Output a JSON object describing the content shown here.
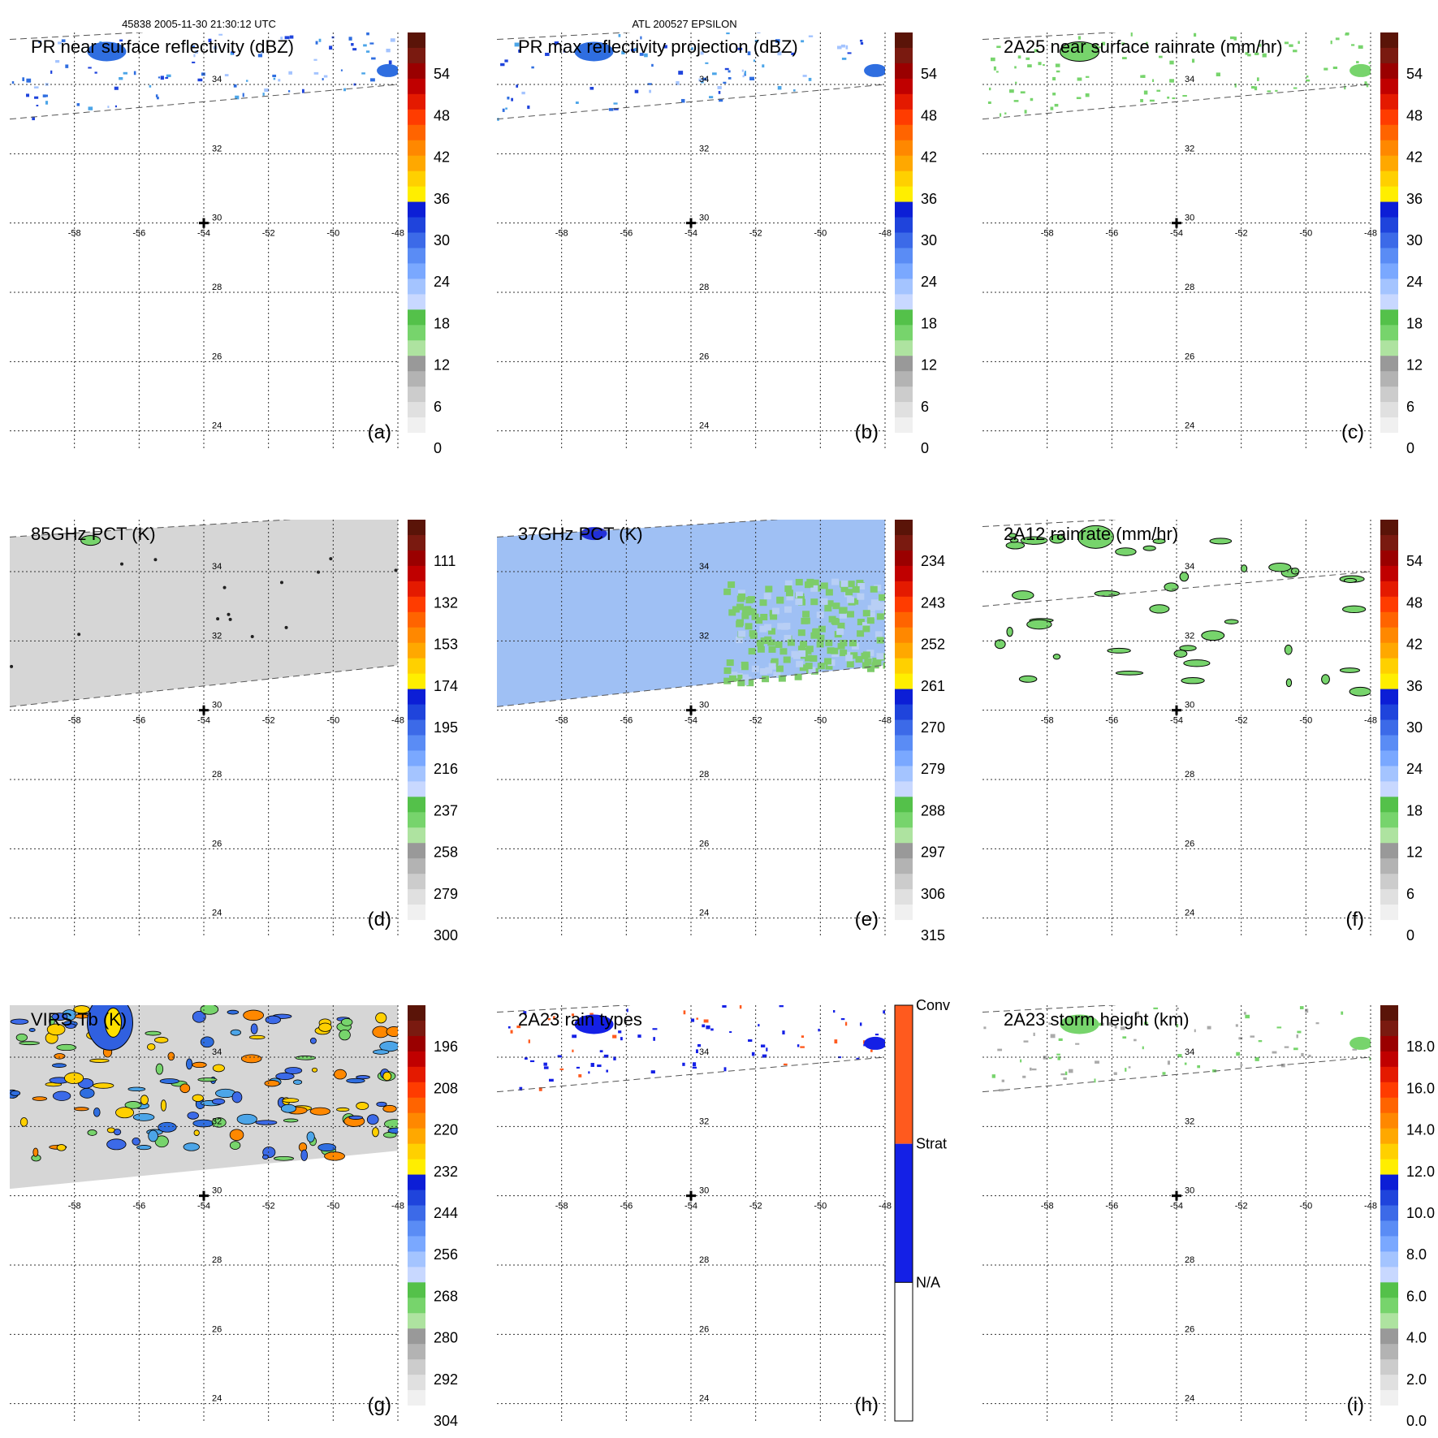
{
  "header": {
    "orbit_time": "45838 2005-11-30 21:30:12 UTC",
    "storm": "ATL 200527 EPSILON"
  },
  "chart_data": [
    {
      "type": "heatmap",
      "panel": "(a)",
      "title": "PR near surface reflectivity (dBZ)",
      "x_ticks": [
        "-58",
        "-56",
        "-54",
        "-52",
        "-50",
        "-48"
      ],
      "y_ticks": [
        "34",
        "32",
        "30",
        "28",
        "26",
        "24"
      ],
      "xlim": [
        -60,
        -48
      ],
      "ylim": [
        23.5,
        35.5
      ],
      "colorbar": {
        "ticks": [
          "54",
          "48",
          "42",
          "36",
          "30",
          "24",
          "18",
          "12",
          "6",
          "0"
        ]
      },
      "swath": {
        "top_edge": [
          [
            -60,
            35.3
          ],
          [
            -48,
            35.9
          ]
        ],
        "bottom_edge": [
          [
            -60,
            33.0
          ],
          [
            -48,
            34.0
          ]
        ]
      }
    },
    {
      "type": "heatmap",
      "panel": "(b)",
      "title": "PR max reflectivity projection (dBZ)",
      "x_ticks": [
        "-58",
        "-56",
        "-54",
        "-52",
        "-50",
        "-48"
      ],
      "y_ticks": [
        "34",
        "32",
        "30",
        "28",
        "26",
        "24"
      ],
      "xlim": [
        -60,
        -48
      ],
      "ylim": [
        23.5,
        35.5
      ],
      "colorbar": {
        "ticks": [
          "54",
          "48",
          "42",
          "36",
          "30",
          "24",
          "18",
          "12",
          "6",
          "0"
        ]
      },
      "swath": {
        "top_edge": [
          [
            -60,
            35.3
          ],
          [
            -48,
            35.9
          ]
        ],
        "bottom_edge": [
          [
            -60,
            33.0
          ],
          [
            -48,
            34.0
          ]
        ]
      }
    },
    {
      "type": "heatmap",
      "panel": "(c)",
      "title": "2A25 near surface rainrate (mm/hr)",
      "x_ticks": [
        "-58",
        "-56",
        "-54",
        "-52",
        "-50",
        "-48"
      ],
      "y_ticks": [
        "34",
        "32",
        "30",
        "28",
        "26",
        "24"
      ],
      "xlim": [
        -60,
        -48
      ],
      "ylim": [
        23.5,
        35.5
      ],
      "colorbar": {
        "ticks": [
          "54",
          "48",
          "42",
          "36",
          "30",
          "24",
          "18",
          "12",
          "6",
          "0"
        ]
      },
      "swath": {
        "top_edge": [
          [
            -60,
            35.3
          ],
          [
            -48,
            35.9
          ]
        ],
        "bottom_edge": [
          [
            -60,
            33.0
          ],
          [
            -48,
            34.0
          ]
        ]
      }
    },
    {
      "type": "heatmap",
      "panel": "(d)",
      "title": "85GHz PCT (K)",
      "x_ticks": [
        "-58",
        "-56",
        "-54",
        "-52",
        "-50",
        "-48"
      ],
      "y_ticks": [
        "34",
        "32",
        "30",
        "28",
        "26",
        "24"
      ],
      "xlim": [
        -60,
        -48
      ],
      "ylim": [
        23.5,
        35.5
      ],
      "colorbar": {
        "ticks": [
          "111",
          "132",
          "153",
          "174",
          "195",
          "216",
          "237",
          "258",
          "279",
          "300"
        ]
      },
      "swath": {
        "top_edge": [
          [
            -60,
            35.0
          ],
          [
            -48,
            35.7
          ]
        ],
        "bottom_edge": [
          [
            -60,
            30.1
          ],
          [
            -48,
            31.3
          ]
        ]
      }
    },
    {
      "type": "heatmap",
      "panel": "(e)",
      "title": "37GHz PCT (K)",
      "x_ticks": [
        "-58",
        "-56",
        "-54",
        "-52",
        "-50",
        "-48"
      ],
      "y_ticks": [
        "34",
        "32",
        "30",
        "28",
        "26",
        "24"
      ],
      "xlim": [
        -60,
        -48
      ],
      "ylim": [
        23.5,
        35.5
      ],
      "colorbar": {
        "ticks": [
          "234",
          "243",
          "252",
          "261",
          "270",
          "279",
          "288",
          "297",
          "306",
          "315"
        ]
      },
      "swath": {
        "top_edge": [
          [
            -60,
            35.0
          ],
          [
            -48,
            35.7
          ]
        ],
        "bottom_edge": [
          [
            -60,
            30.1
          ],
          [
            -48,
            31.3
          ]
        ]
      }
    },
    {
      "type": "heatmap",
      "panel": "(f)",
      "title": "2A12 rainrate (mm/hr)",
      "x_ticks": [
        "-58",
        "-56",
        "-54",
        "-52",
        "-50",
        "-48"
      ],
      "y_ticks": [
        "34",
        "32",
        "30",
        "28",
        "26",
        "24"
      ],
      "xlim": [
        -60,
        -48
      ],
      "ylim": [
        23.5,
        35.5
      ],
      "colorbar": {
        "ticks": [
          "54",
          "48",
          "42",
          "36",
          "30",
          "24",
          "18",
          "12",
          "6",
          "0"
        ]
      },
      "swath": {
        "top_edge": [
          [
            -60,
            35.3
          ],
          [
            -48,
            35.9
          ]
        ],
        "bottom_edge": [
          [
            -60,
            33.0
          ],
          [
            -48,
            34.0
          ]
        ]
      }
    },
    {
      "type": "heatmap",
      "panel": "(g)",
      "title": "VIRS Tb (K)",
      "x_ticks": [
        "-58",
        "-56",
        "-54",
        "-52",
        "-50",
        "-48"
      ],
      "y_ticks": [
        "34",
        "32",
        "30",
        "28",
        "26",
        "24"
      ],
      "xlim": [
        -60,
        -48
      ],
      "ylim": [
        23.5,
        35.5
      ],
      "colorbar": {
        "ticks": [
          "196",
          "208",
          "220",
          "232",
          "244",
          "256",
          "268",
          "280",
          "292",
          "304"
        ]
      },
      "swath": {
        "top_edge": [
          [
            -60,
            35.5
          ],
          [
            -48,
            35.5
          ]
        ],
        "bottom_edge": [
          [
            -60,
            30.2
          ],
          [
            -48,
            31.3
          ]
        ]
      }
    },
    {
      "type": "heatmap",
      "panel": "(h)",
      "title": "2A23 rain types",
      "x_ticks": [
        "-58",
        "-56",
        "-54",
        "-52",
        "-50",
        "-48"
      ],
      "y_ticks": [
        "34",
        "32",
        "30",
        "28",
        "26",
        "24"
      ],
      "xlim": [
        -60,
        -48
      ],
      "ylim": [
        23.5,
        35.5
      ],
      "colorbar": {
        "categories": [
          "Conv",
          "Strat",
          "N/A"
        ]
      },
      "swath": {
        "top_edge": [
          [
            -60,
            35.3
          ],
          [
            -48,
            35.9
          ]
        ],
        "bottom_edge": [
          [
            -60,
            33.0
          ],
          [
            -48,
            34.0
          ]
        ]
      }
    },
    {
      "type": "heatmap",
      "panel": "(i)",
      "title": "2A23 storm height (km)",
      "x_ticks": [
        "-58",
        "-56",
        "-54",
        "-52",
        "-50",
        "-48"
      ],
      "y_ticks": [
        "34",
        "32",
        "30",
        "28",
        "26",
        "24"
      ],
      "xlim": [
        -60,
        -48
      ],
      "ylim": [
        23.5,
        35.5
      ],
      "colorbar": {
        "ticks": [
          "18.0",
          "16.0",
          "14.0",
          "12.0",
          "10.0",
          "8.0",
          "6.0",
          "4.0",
          "2.0",
          "0.0"
        ]
      },
      "swath": {
        "top_edge": [
          [
            -60,
            35.3
          ],
          [
            -48,
            35.9
          ]
        ],
        "bottom_edge": [
          [
            -60,
            33.0
          ],
          [
            -48,
            34.0
          ]
        ]
      }
    }
  ],
  "colors": {
    "ramp": [
      "#ffffff",
      "#f0f0f0",
      "#e0e0e0",
      "#cccccc",
      "#b3b3b3",
      "#999999",
      "#aee3a0",
      "#77d46c",
      "#54c14a",
      "#c8d8ff",
      "#a4c4ff",
      "#7aa8ff",
      "#5a8cf5",
      "#3c6ae8",
      "#1f44dc",
      "#0c1ed6",
      "#ffee00",
      "#ffd000",
      "#ffa800",
      "#ff8800",
      "#ff6400",
      "#ff3c00",
      "#e41a00",
      "#c00000",
      "#9a0000",
      "#7a1a10",
      "#5a1408"
    ],
    "rain_types": {
      "conv": "#ff5a1e",
      "strat": "#1420e6",
      "na": "#ffffff"
    },
    "grid": "#333333",
    "swath_edge": "#555555"
  }
}
